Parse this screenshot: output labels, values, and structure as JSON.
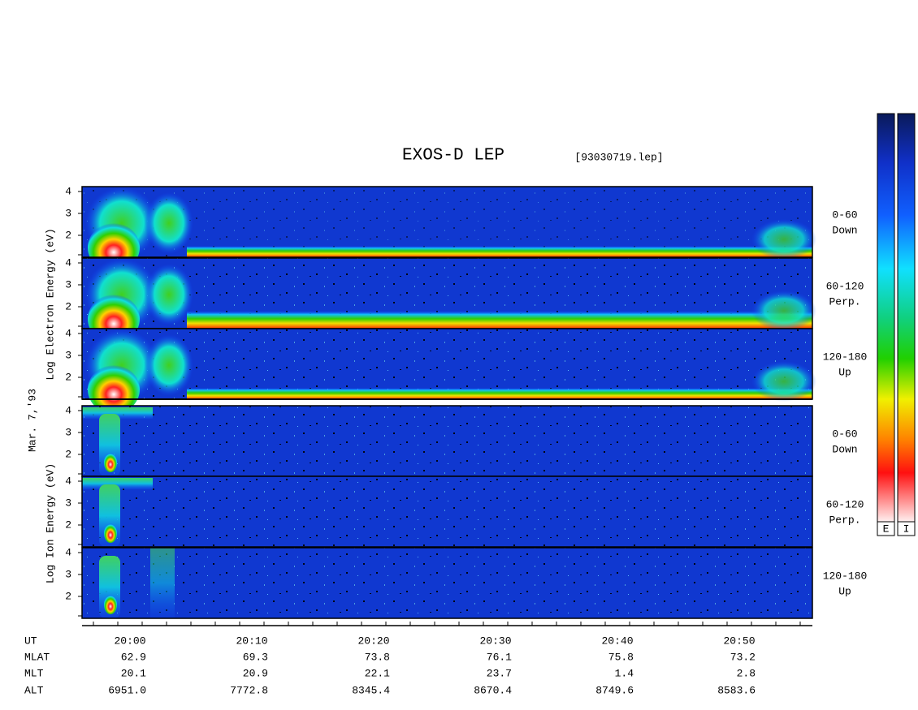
{
  "header": {
    "title": "EXOS-D LEP",
    "file": "[93030719.lep]"
  },
  "side_labels": {
    "date": "Mar. 7,'93",
    "electron": "Log  Electron  Energy (eV)",
    "ion": "Log  Ion  Energy (eV)"
  },
  "energy_ticks": [
    2,
    3,
    4
  ],
  "electron_panels": [
    {
      "pitch": "0-60",
      "direction": "Down"
    },
    {
      "pitch": "60-120",
      "direction": "Perp."
    },
    {
      "pitch": "120-180",
      "direction": "Up"
    }
  ],
  "ion_panels": [
    {
      "pitch": "0-60",
      "direction": "Down"
    },
    {
      "pitch": "60-120",
      "direction": "Perp."
    },
    {
      "pitch": "120-180",
      "direction": "Up"
    }
  ],
  "ephemeris": {
    "labels": [
      "UT",
      "MLAT",
      "MLT",
      "ALT"
    ],
    "columns": [
      [
        "20:00",
        "62.9",
        "20.1",
        "6951.0"
      ],
      [
        "20:10",
        "69.3",
        "20.9",
        "7772.8"
      ],
      [
        "20:20",
        "73.8",
        "22.1",
        "8345.4"
      ],
      [
        "20:30",
        "76.1",
        "23.7",
        "8670.4"
      ],
      [
        "20:40",
        "75.8",
        "1.4",
        "8749.6"
      ],
      [
        "20:50",
        "73.2",
        "2.8",
        "8583.6"
      ]
    ]
  },
  "colorbars": [
    "E",
    "I"
  ]
}
